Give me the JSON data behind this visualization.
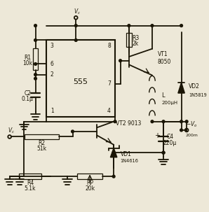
{
  "bg_color": "#ede8d8",
  "line_color": "#1a1505",
  "lw": 1.3,
  "tlw": 0.9,
  "fs_label": 5.5,
  "fs_pin": 5.5,
  "fs_ic": 8,
  "components": {
    "R1": "10k",
    "R2": "51k",
    "R3": "2k",
    "R4": "5.1k",
    "RP": "20k",
    "C2": "0.1μ",
    "C4": "220μ",
    "L": "200μH",
    "VT1": "8050",
    "VT2": "9013",
    "VD1": "1N4616",
    "VD2": "1N5819"
  }
}
